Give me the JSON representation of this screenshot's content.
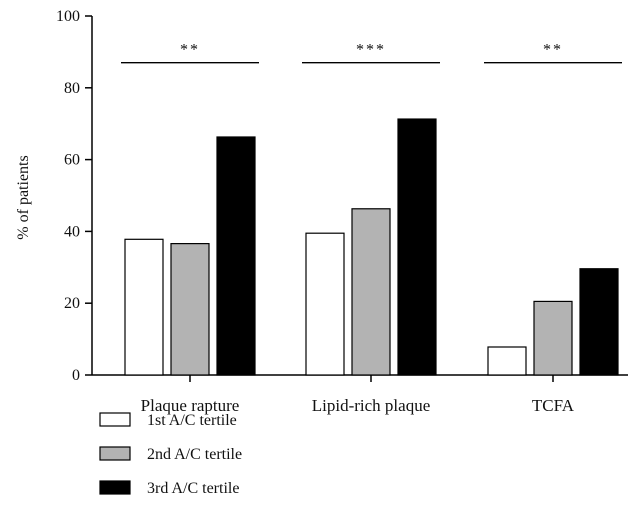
{
  "chart_data": {
    "type": "bar",
    "ylabel": "% of patients",
    "ylim": [
      0,
      100
    ],
    "yticks": [
      0,
      20,
      40,
      60,
      80,
      100
    ],
    "categories": [
      "Plaque rapture",
      "Lipid-rich plaque",
      "TCFA"
    ],
    "series": [
      {
        "name": "1st A/C tertile",
        "values": [
          37.8,
          39.5,
          7.8
        ],
        "color": "#ffffff"
      },
      {
        "name": "2nd A/C tertile",
        "values": [
          36.6,
          46.3,
          20.5
        ],
        "color": "#b3b3b3"
      },
      {
        "name": "3rd A/C tertile",
        "values": [
          66.3,
          71.3,
          29.6
        ],
        "color": "#000000"
      }
    ],
    "significance": [
      {
        "category": "Plaque rapture",
        "label": "**",
        "y": 87
      },
      {
        "category": "Lipid-rich plaque",
        "label": "***",
        "y": 87
      },
      {
        "category": "TCFA",
        "label": "**",
        "y": 87
      }
    ],
    "grid": false,
    "legend_position": "bottom-left"
  }
}
